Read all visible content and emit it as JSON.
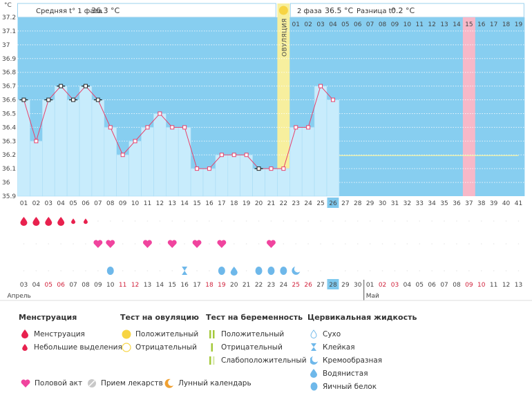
{
  "header": {
    "unit": "°C",
    "phase1_label": "Средняя t° 1 фаза",
    "phase1_value": "36.3 °C",
    "phase2_label": "2 фаза",
    "phase2_value": "36.5 °C",
    "diff_label": "Разница t°",
    "diff_value": "0.2 °C",
    "ovulation_label": "ОВУЛЯЦИЯ",
    "cycle2_days": [
      "01",
      "02",
      "03",
      "04",
      "05",
      "06",
      "07",
      "08",
      "09",
      "10",
      "11",
      "12",
      "13",
      "14",
      "15",
      "16",
      "17",
      "18",
      "19"
    ],
    "cycle2_highlight": "15"
  },
  "chart_data": {
    "type": "area",
    "y_ticks": [
      "37.2",
      "37.1",
      "37",
      "36.9",
      "36.8",
      "36.7",
      "36.6",
      "36.5",
      "36.4",
      "36.3",
      "36.2",
      "36.1",
      "36",
      "35.9"
    ],
    "ylim": [
      35.9,
      37.2
    ],
    "cycle_days": [
      "01",
      "02",
      "03",
      "04",
      "05",
      "06",
      "07",
      "08",
      "09",
      "10",
      "11",
      "12",
      "13",
      "14",
      "15",
      "16",
      "17",
      "18",
      "19",
      "20",
      "21",
      "22",
      "23",
      "24",
      "25",
      "26",
      "27",
      "28",
      "29",
      "30",
      "31",
      "32",
      "33",
      "34",
      "35",
      "36",
      "37",
      "38",
      "39",
      "40",
      "41"
    ],
    "current_day": "26",
    "temperatures": [
      36.6,
      36.3,
      36.6,
      36.7,
      36.6,
      36.7,
      36.6,
      36.4,
      36.2,
      36.3,
      36.4,
      36.5,
      36.4,
      36.4,
      36.1,
      36.1,
      36.2,
      36.2,
      36.2,
      36.1,
      36.1,
      36.1,
      36.4,
      36.4,
      36.7,
      36.6
    ],
    "black_markers": [
      1,
      3,
      4,
      5,
      6,
      7,
      20
    ],
    "ovulation_day": 22,
    "highlight_day": 37,
    "coverline": 36.2,
    "menstruation": [
      {
        "day": 1,
        "size": "big"
      },
      {
        "day": 2,
        "size": "big"
      },
      {
        "day": 3,
        "size": "big"
      },
      {
        "day": 4,
        "size": "big"
      },
      {
        "day": 5,
        "size": "small"
      },
      {
        "day": 6,
        "size": "small"
      }
    ],
    "intercourse": [
      7,
      8,
      11,
      13,
      15,
      17,
      21
    ],
    "cervical": [
      {
        "day": 8,
        "type": "egg"
      },
      {
        "day": 14,
        "type": "sticky"
      },
      {
        "day": 17,
        "type": "egg"
      },
      {
        "day": 18,
        "type": "watery"
      },
      {
        "day": 20,
        "type": "egg"
      },
      {
        "day": 21,
        "type": "egg"
      },
      {
        "day": 22,
        "type": "egg"
      },
      {
        "day": 23,
        "type": "creamy"
      }
    ],
    "moon_day": 25,
    "dates": [
      "03",
      "04",
      "05",
      "06",
      "07",
      "08",
      "09",
      "10",
      "11",
      "12",
      "13",
      "14",
      "15",
      "16",
      "17",
      "18",
      "19",
      "20",
      "21",
      "22",
      "23",
      "24",
      "25",
      "26",
      "27",
      "28",
      "29",
      "30",
      "01",
      "02",
      "03",
      "04",
      "05",
      "06",
      "07",
      "08",
      "09",
      "10",
      "11",
      "12",
      "13"
    ],
    "red_dates": [
      2,
      3,
      8,
      9,
      15,
      16,
      22,
      23,
      29,
      30,
      36,
      37
    ],
    "current_date_index": 25,
    "month1": "Апрель",
    "month2": "Май",
    "month2_index": 28
  },
  "legend": {
    "menstruation": {
      "title": "Менструация",
      "items": [
        "Менструация",
        "Небольшие выделения"
      ]
    },
    "ovulation_test": {
      "title": "Тест на овуляцию",
      "items": [
        "Положительный",
        "Отрицательный"
      ]
    },
    "pregnancy_test": {
      "title": "Тест на беременность",
      "items": [
        "Положительный",
        "Отрицательный",
        "Слабоположительный"
      ]
    },
    "cervical": {
      "title": "Цервикальная жидкость",
      "items": [
        "Сухо",
        "Клейкая",
        "Кремообразная",
        "Водянистая",
        "Яичный белок"
      ]
    },
    "bottom": [
      "Половой акт",
      "Прием лекарств",
      "Лунный календарь"
    ],
    "colors": {
      "accent": "#e8214e",
      "sky": "#87cef0",
      "bar": "#c8ecfc",
      "ovulation": "#f7ef9e",
      "highlight": "#f7b8c8",
      "drop": "#6eb8ea",
      "sun": "#f7d443"
    }
  }
}
